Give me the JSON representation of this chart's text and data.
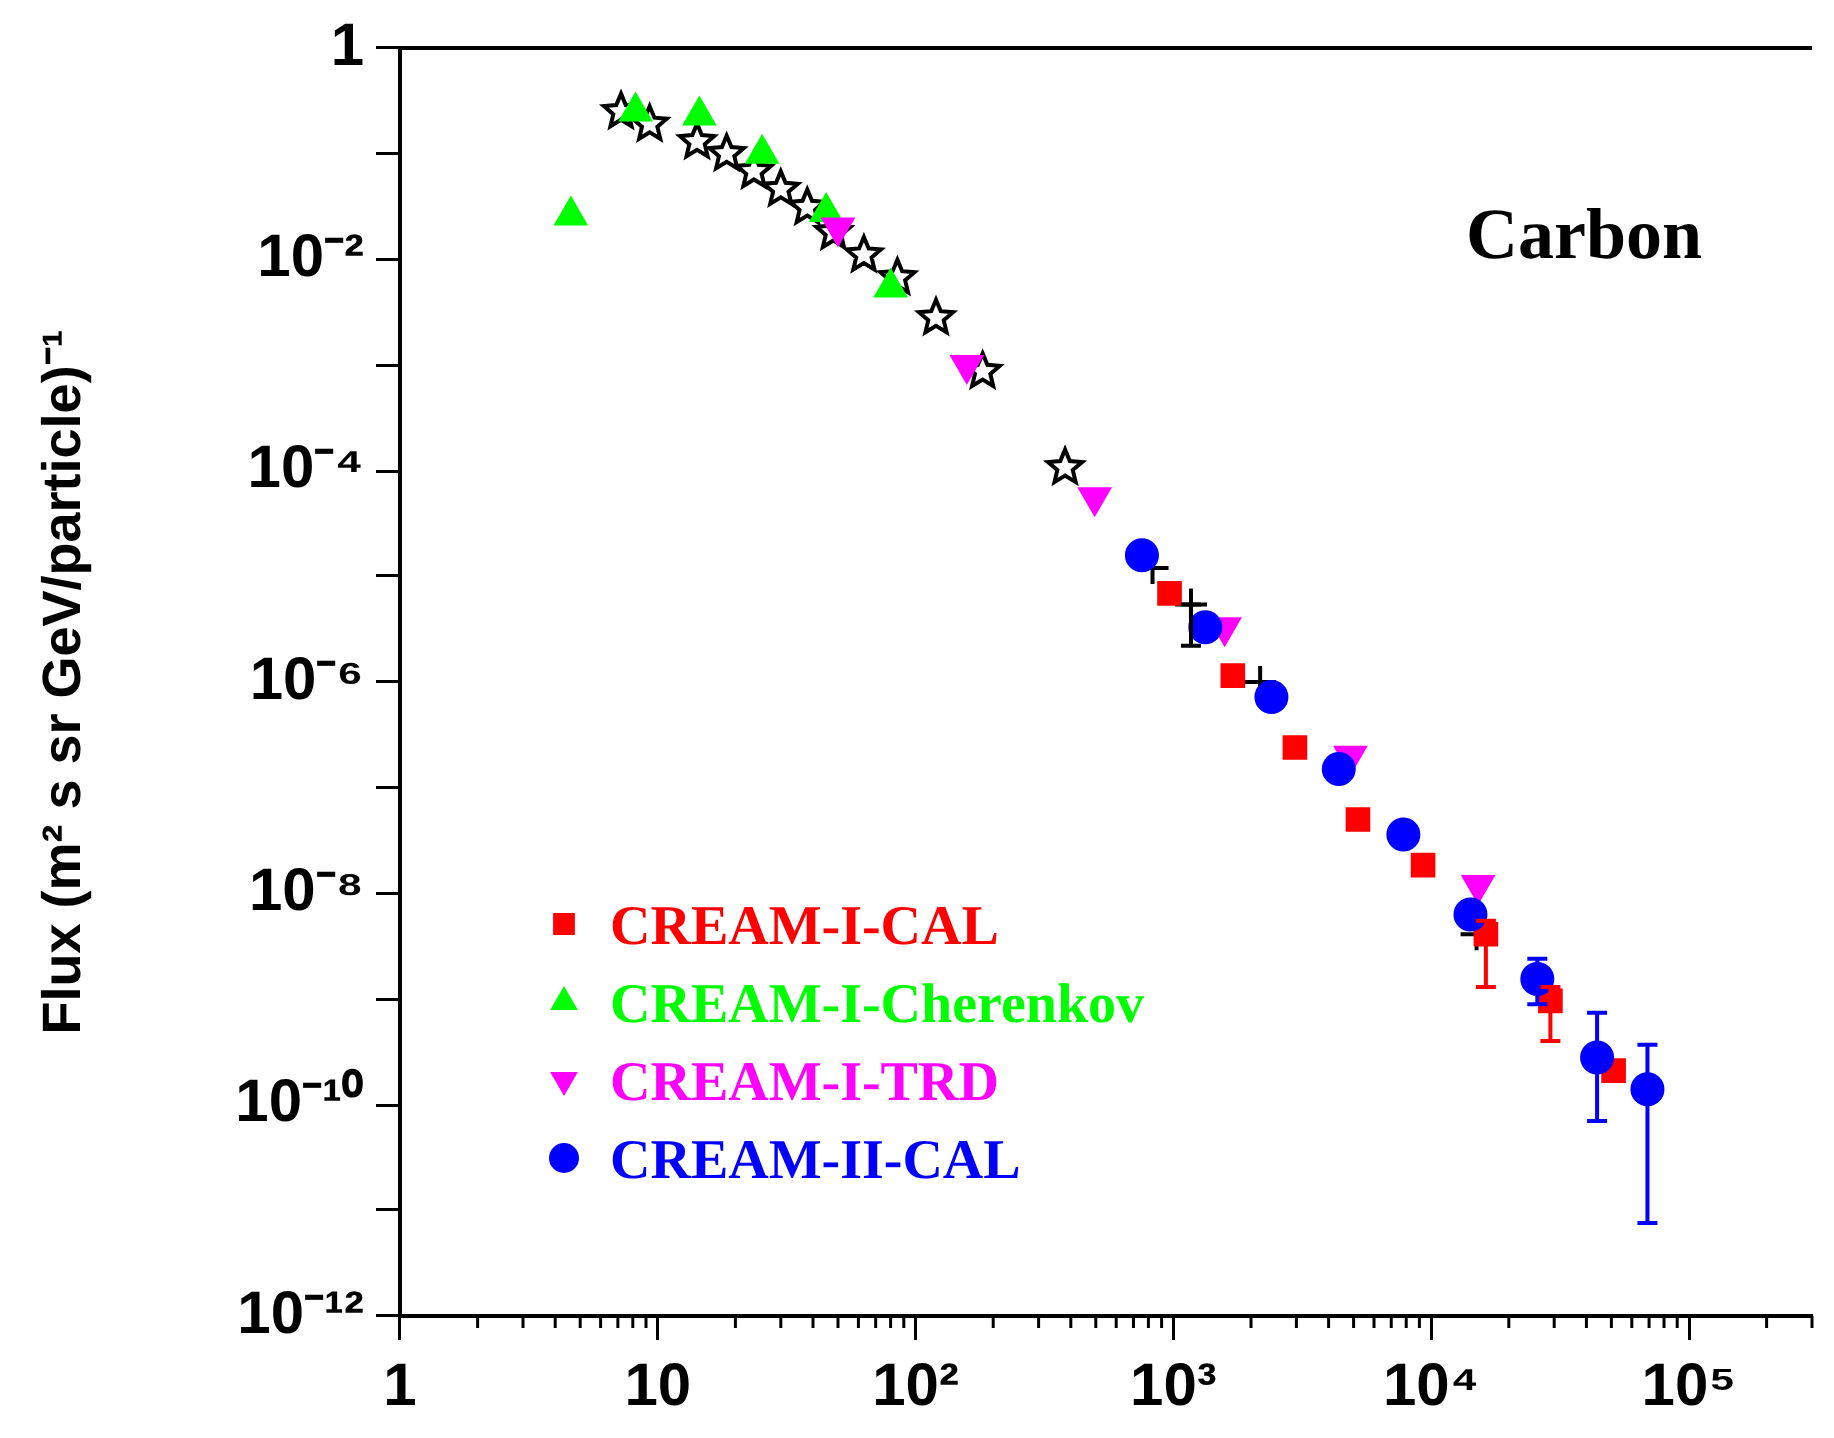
{
  "chart_data": {
    "type": "scatter",
    "xlim": [
      1,
      300000
    ],
    "ylim": [
      1e-12,
      1
    ],
    "log": "xy",
    "grid": false,
    "legend": "bottom left",
    "ylabel": "Flux (m² s sr GeV/particle)⁻¹",
    "annotations": [
      "Carbon"
    ],
    "xticks": [
      1,
      10,
      {
        "value": 100,
        "label": "10²"
      },
      {
        "value": 1000,
        "label": "10³"
      },
      {
        "value": 10000,
        "label": "10⁴"
      },
      {
        "value": 100000,
        "label": "10⁵"
      }
    ],
    "yticks": [
      {
        "value": 1e-12,
        "label": "10⁻¹²"
      },
      {
        "value": 1e-11,
        "label": null
      },
      {
        "value": 1e-10,
        "label": "10⁻¹⁰"
      },
      {
        "value": 1e-09,
        "label": null
      },
      {
        "value": 1e-08,
        "label": "10⁻⁸"
      },
      {
        "value": 1e-07,
        "label": null
      },
      {
        "value": 1e-06,
        "label": "10⁻⁶"
      },
      {
        "value": 1e-05,
        "label": null
      },
      {
        "value": 0.0001,
        "label": "10⁻⁴"
      },
      {
        "value": 0.001,
        "label": null
      },
      {
        "value": 0.01,
        "label": "10⁻²"
      },
      {
        "value": 0.1,
        "label": null
      },
      1
    ],
    "series": [
      {
        "name": null,
        "color": "#000000",
        "marker": "star",
        "x": [
          7.2,
          9.3,
          14.2,
          18.5,
          23.6,
          30,
          38,
          48,
          63,
          85,
          120,
          182,
          380
        ],
        "values": [
          0.25,
          0.19,
          0.13,
          0.1,
          0.068,
          0.046,
          0.031,
          0.018,
          0.011,
          0.0067,
          0.0028,
          0.00087,
          0.000107
        ]
      },
      {
        "name": null,
        "color": "#000000",
        "marker": "cross",
        "x": [
          830,
          1170,
          2170,
          15000
        ],
        "values": [
          1.2e-05,
          5.4e-06,
          1e-06,
          4.1e-09
        ],
        "errors": [
          null,
          [
            2.2e-06,
            5.4e-06
          ],
          null,
          null
        ]
      },
      {
        "name": "CREAM-I-CAL",
        "color": "#ff0000",
        "marker": "square",
        "x": [
          966,
          1700,
          2960,
          5200,
          9300,
          16300,
          29000,
          51000
        ],
        "values": [
          6.9e-06,
          1.15e-06,
          2.4e-07,
          5e-08,
          1.85e-08,
          4.1e-09,
          9.6e-10,
          2.1e-10
        ],
        "errors": [
          null,
          null,
          null,
          null,
          null,
          [
            1.3e-09,
            5.5e-09
          ],
          [
            4e-10,
            1.3e-09
          ],
          null
        ]
      },
      {
        "name": "CREAM-I-Cherenkov",
        "color": "#00ff00",
        "marker": "triangle",
        "x": [
          4.6,
          8.2,
          14.5,
          25.4,
          45,
          80
        ],
        "values": [
          0.026,
          0.25,
          0.23,
          0.1,
          0.028,
          0.0054
        ]
      },
      {
        "name": "CREAM-I-TRD",
        "color": "#ff00ff",
        "marker": "triangle-down",
        "x": [
          50,
          158,
          495,
          1580,
          4860,
          15200
        ],
        "values": [
          0.02,
          0.001,
          5.6e-05,
          3.3e-06,
          2e-07,
          1.2e-08
        ]
      },
      {
        "name": "CREAM-II-CAL",
        "color": "#0000ff",
        "marker": "circle",
        "x": [
          755,
          1330,
          2400,
          4380,
          7800,
          14200,
          25800,
          44000,
          69000
        ],
        "values": [
          1.58e-05,
          3.3e-06,
          7.2e-07,
          1.5e-07,
          3.6e-08,
          6.3e-09,
          1.55e-09,
          2.8e-10,
          1.4e-10
        ],
        "errors": [
          null,
          null,
          null,
          null,
          null,
          null,
          [
            8.9e-10,
            2.4e-09
          ],
          [
            7e-11,
            7.4e-10
          ],
          [
            7.6e-12,
            3.7e-10
          ]
        ]
      }
    ]
  }
}
